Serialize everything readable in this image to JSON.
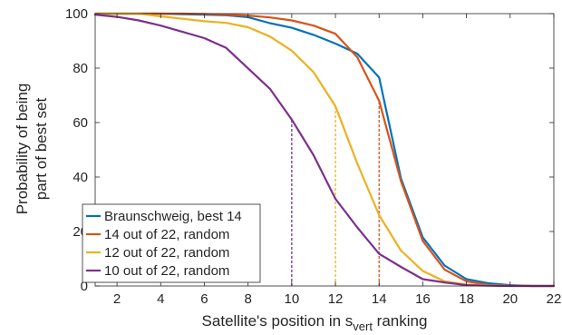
{
  "chart_data": {
    "type": "line",
    "xlabel": "Satellite's position in s",
    "xlabel_sub": "vert",
    "xlabel_suffix": " ranking",
    "ylabel": [
      "Probability of being",
      "part of best set"
    ],
    "xlim": [
      1,
      22
    ],
    "ylim": [
      0,
      100
    ],
    "xticks": [
      2,
      4,
      6,
      8,
      10,
      12,
      14,
      16,
      18,
      20,
      22
    ],
    "yticks": [
      0,
      20,
      40,
      60,
      80,
      100
    ],
    "grid": false,
    "legend": "bottom-left",
    "x": [
      1,
      2,
      3,
      4,
      5,
      6,
      7,
      8,
      9,
      10,
      11,
      12,
      13,
      14,
      15,
      16,
      17,
      18,
      19,
      20,
      21,
      22
    ],
    "series": [
      {
        "name": "Braunschweig, best 14",
        "color": "#0072BD",
        "values": [
          100,
          100,
          100,
          100,
          99.8,
          99.6,
          99.4,
          98.7,
          96.5,
          94.8,
          92.2,
          89,
          85.3,
          76.6,
          39.5,
          17.8,
          7.5,
          2.5,
          1,
          0.3,
          0,
          0
        ]
      },
      {
        "name": "14 out of 22, random",
        "color": "#D95319",
        "values": [
          100,
          100,
          100,
          100,
          100,
          99.9,
          99.6,
          99.3,
          98.6,
          97.5,
          95.6,
          92.6,
          84,
          68,
          38.5,
          16.5,
          6,
          1.7,
          0.4,
          0.1,
          0,
          0
        ]
      },
      {
        "name": "12 out of 22, random",
        "color": "#EDB120",
        "values": [
          100,
          100,
          100,
          99,
          98.1,
          97.2,
          96.6,
          95,
          91.6,
          86.4,
          78.5,
          66,
          45,
          26,
          13,
          5.5,
          1.7,
          0.5,
          0.2,
          0,
          0,
          0
        ]
      },
      {
        "name": "10 out of 22, random",
        "color": "#7E2F8E",
        "values": [
          99.6,
          98.8,
          97.5,
          95.6,
          93.3,
          91,
          87.4,
          79.9,
          72.4,
          61.1,
          48,
          32,
          21.5,
          11.8,
          7,
          2.5,
          1.3,
          0.3,
          0.1,
          0,
          0,
          0
        ]
      }
    ],
    "reference_lines": [
      {
        "x": 10,
        "y": 61.1,
        "color": "#7E2F8E"
      },
      {
        "x": 12,
        "y": 66,
        "color": "#EDB120"
      },
      {
        "x": 14,
        "y": 68,
        "color": "#D95319"
      }
    ]
  }
}
